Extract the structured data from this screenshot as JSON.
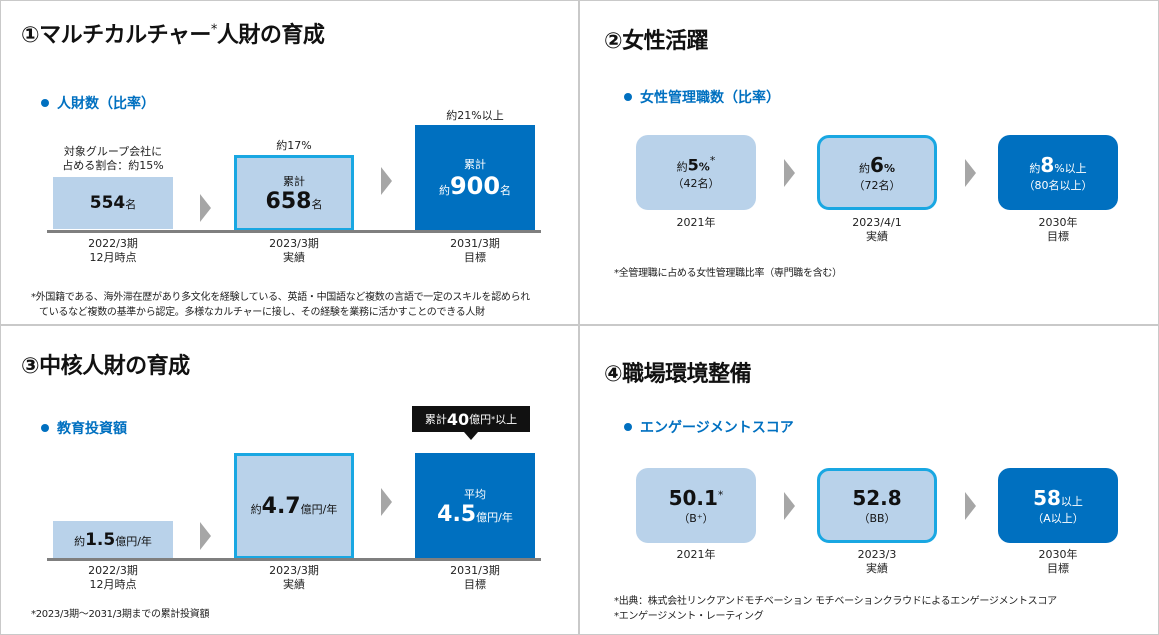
{
  "panel1": {
    "title": "①マルチカルチャー",
    "title_sup": "*",
    "title_tail": "人財の育成",
    "subhead": "人財数（比率）",
    "bar1": {
      "top_label_line1": "対象グループ会社に",
      "top_label_line2": "占める割合：約15%",
      "value": "554",
      "unit": "名",
      "cap_line1": "2022/3期",
      "cap_line2": "12月時点"
    },
    "bar2": {
      "top_label": "約17%",
      "prefix": "累計",
      "value": "658",
      "unit": "名",
      "cap_line1": "2023/3期",
      "cap_line2": "実績"
    },
    "bar3": {
      "top_label": "約21%以上",
      "prefix": "累計",
      "pre_value": "約",
      "value": "900",
      "unit": "名",
      "cap_line1": "2031/3期",
      "cap_line2": "目標"
    },
    "note_line1": "*外国籍である、海外滞在歴があり多文化を経験している、英語・中国語など複数の言語で一定のスキルを認められ",
    "note_line2": "ているなど複数の基準から認定。多様なカルチャーに接し、その経験を業務に活かすことのできる人財"
  },
  "panel2": {
    "title": "②女性活躍",
    "subhead": "女性管理職数（比率）",
    "box1": {
      "pre": "約",
      "value": "5",
      "unit": "%",
      "sup": "*",
      "sub": "（42名）",
      "cap_line1": "2021年",
      "cap_line2": ""
    },
    "box2": {
      "pre": "約",
      "value": "6",
      "unit": "%",
      "sub": "（72名）",
      "cap_line1": "2023/4/1",
      "cap_line2": "実績"
    },
    "box3": {
      "pre": "約",
      "value": "8",
      "unit": "%以上",
      "sub": "（80名以上）",
      "cap_line1": "2030年",
      "cap_line2": "目標"
    },
    "note": "*全管理職に占める女性管理職比率（専門職を含む）"
  },
  "panel3": {
    "title": "③中核人財の育成",
    "subhead": "教育投資額",
    "bar1": {
      "pre": "約",
      "value": "1.5",
      "unit": "億円/年",
      "cap_line1": "2022/3期",
      "cap_line2": "12月時点"
    },
    "bar2": {
      "pre": "約",
      "value": "4.7",
      "unit": "億円/年",
      "cap_line1": "2023/3期",
      "cap_line2": "実績"
    },
    "bar3": {
      "prefix": "平均",
      "value": "4.5",
      "unit": "億円/年",
      "cap_line1": "2031/3期",
      "cap_line2": "目標"
    },
    "callout": {
      "pre": "累計",
      "value": "40",
      "unit": "億円",
      "sup": "*",
      "tail": "以上"
    },
    "note": "*2023/3期～2031/3期までの累計投資額"
  },
  "panel4": {
    "title": "④職場環境整備",
    "subhead": "エンゲージメントスコア",
    "box1": {
      "value": "50.1",
      "sup": "*",
      "sub": "（B⁺）",
      "cap_line1": "2021年",
      "cap_line2": ""
    },
    "box2": {
      "value": "52.8",
      "sub": "（BB）",
      "cap_line1": "2023/3",
      "cap_line2": "実績"
    },
    "box3": {
      "value": "58",
      "unit": "以上",
      "sub": "（A以上）",
      "cap_line1": "2030年",
      "cap_line2": "目標"
    },
    "note_line1": "*出典：株式会社リンクアンドモチベーション モチベーションクラウドによるエンゲージメントスコア",
    "note_line2": "*エンゲージメント・レーティング"
  },
  "colors": {
    "accent": "#0070c0",
    "light": "#b9d2ea",
    "outline": "#19a7e2",
    "arrow": "#a6a6a6"
  }
}
